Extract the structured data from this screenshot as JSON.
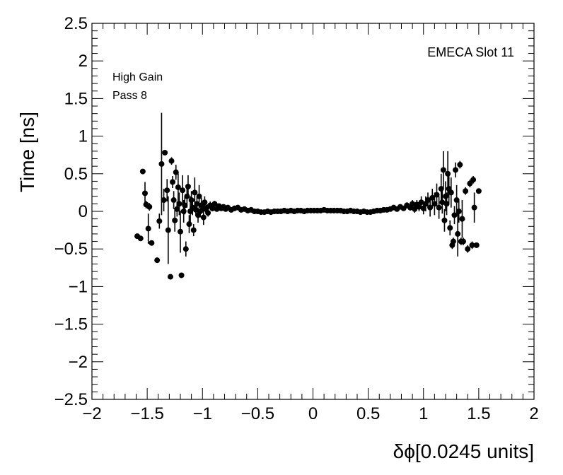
{
  "chart_data": {
    "type": "scatter",
    "title": "",
    "xlabel": "δϕ[0.0245 units]",
    "ylabel": "Time [ns]",
    "xlim": [
      -2,
      2
    ],
    "ylim": [
      -2.5,
      2.5
    ],
    "x_ticks": [
      -2,
      -1.5,
      -1,
      -0.5,
      0,
      0.5,
      1,
      1.5,
      2
    ],
    "x_tick_labels": [
      "−2",
      "−1.5",
      "−1",
      "−0.5",
      "0",
      "0.5",
      "1",
      "1.5",
      "2"
    ],
    "y_ticks": [
      2.5,
      2,
      1.5,
      1,
      0.5,
      0,
      -0.5,
      -1,
      -1.5,
      -2,
      -2.5
    ],
    "y_tick_labels": [
      "2.5",
      "2",
      "1.5",
      "1",
      "0.5",
      "0",
      "−0.5",
      "−1",
      "−1.5",
      "−2",
      "−2.5"
    ],
    "grid": false,
    "marker": "filled-circle",
    "marker_color": "#000000",
    "annotations": {
      "top_right": "EMECA Slot 11",
      "top_left": [
        "High Gain",
        "Pass 8"
      ]
    },
    "points": [
      {
        "x": -1.59,
        "y": -0.33,
        "err": 0.02
      },
      {
        "x": -1.56,
        "y": -0.36,
        "err": 0.02
      },
      {
        "x": -1.54,
        "y": 0.53,
        "err": 0.03
      },
      {
        "x": -1.52,
        "y": 0.24,
        "err": 0.15
      },
      {
        "x": -1.51,
        "y": 0.09,
        "err": 0.05
      },
      {
        "x": -1.49,
        "y": -0.23,
        "err": 0.2
      },
      {
        "x": -1.48,
        "y": 0.06,
        "err": 0.05
      },
      {
        "x": -1.46,
        "y": -0.42,
        "err": 0.03
      },
      {
        "x": -1.41,
        "y": -0.65,
        "err": 0.03
      },
      {
        "x": -1.39,
        "y": -0.13,
        "err": 0.1
      },
      {
        "x": -1.37,
        "y": 0.63,
        "err": 0.68
      },
      {
        "x": -1.35,
        "y": 0.15,
        "err": 0.15
      },
      {
        "x": -1.34,
        "y": 0.78,
        "err": 0.03
      },
      {
        "x": -1.32,
        "y": 0.28,
        "err": 0.15
      },
      {
        "x": -1.31,
        "y": -0.25,
        "err": 0.45
      },
      {
        "x": -1.29,
        "y": -0.87,
        "err": 0.03
      },
      {
        "x": -1.28,
        "y": 0.67,
        "err": 0.05
      },
      {
        "x": -1.27,
        "y": 0.39,
        "err": 0.08
      },
      {
        "x": -1.26,
        "y": 0.15,
        "err": 0.12
      },
      {
        "x": -1.25,
        "y": -0.12,
        "err": 0.15
      },
      {
        "x": -1.24,
        "y": 0.52,
        "err": 0.1
      },
      {
        "x": -1.23,
        "y": 0.03,
        "err": 0.1
      },
      {
        "x": -1.22,
        "y": 0.32,
        "err": 0.2
      },
      {
        "x": -1.21,
        "y": 0.1,
        "err": 0.15
      },
      {
        "x": -1.2,
        "y": -0.27,
        "err": 0.28
      },
      {
        "x": -1.19,
        "y": -0.85,
        "err": 0.03
      },
      {
        "x": -1.18,
        "y": 0.28,
        "err": 0.2
      },
      {
        "x": -1.17,
        "y": 0.0,
        "err": 0.15
      },
      {
        "x": -1.16,
        "y": 0.08,
        "err": 0.12
      },
      {
        "x": -1.15,
        "y": -0.5,
        "err": 0.1
      },
      {
        "x": -1.14,
        "y": 0.2,
        "err": 0.15
      },
      {
        "x": -1.13,
        "y": 0.33,
        "err": 0.15
      },
      {
        "x": -1.12,
        "y": -0.17,
        "err": 0.12
      },
      {
        "x": -1.11,
        "y": 0.0,
        "err": 0.2
      },
      {
        "x": -1.1,
        "y": 0.15,
        "err": 0.12
      },
      {
        "x": -1.09,
        "y": 0.05,
        "err": 0.1
      },
      {
        "x": -1.08,
        "y": -0.25,
        "err": 0.08
      },
      {
        "x": -1.07,
        "y": 0.25,
        "err": 0.2
      },
      {
        "x": -1.06,
        "y": 0.02,
        "err": 0.08
      },
      {
        "x": -1.05,
        "y": 0.1,
        "err": 0.1
      },
      {
        "x": -1.04,
        "y": -0.05,
        "err": 0.1
      },
      {
        "x": -1.03,
        "y": 0.2,
        "err": 0.15
      },
      {
        "x": -1.02,
        "y": 0.0,
        "err": 0.08
      },
      {
        "x": -1.01,
        "y": 0.08,
        "err": 0.1
      },
      {
        "x": -1.0,
        "y": 0.05,
        "err": 0.06
      },
      {
        "x": -0.99,
        "y": -0.08,
        "err": 0.1
      },
      {
        "x": -0.98,
        "y": 0.12,
        "err": 0.08
      },
      {
        "x": -0.97,
        "y": 0.03,
        "err": 0.05
      },
      {
        "x": -0.96,
        "y": 0.05,
        "err": 0.04
      },
      {
        "x": -0.95,
        "y": -0.02,
        "err": 0.05
      },
      {
        "x": -0.93,
        "y": 0.08,
        "err": 0.05
      },
      {
        "x": -0.91,
        "y": 0.04,
        "err": 0.04
      },
      {
        "x": -0.89,
        "y": 0.1,
        "err": 0.04
      },
      {
        "x": -0.87,
        "y": 0.03,
        "err": 0.03
      },
      {
        "x": -0.85,
        "y": 0.07,
        "err": 0.03
      },
      {
        "x": -0.83,
        "y": 0.04,
        "err": 0.03
      },
      {
        "x": -0.81,
        "y": 0.06,
        "err": 0.03
      },
      {
        "x": -0.79,
        "y": 0.03,
        "err": 0.02
      },
      {
        "x": -0.77,
        "y": 0.05,
        "err": 0.02
      },
      {
        "x": -0.74,
        "y": 0.02,
        "err": 0.02
      },
      {
        "x": -0.71,
        "y": 0.04,
        "err": 0.02
      },
      {
        "x": -0.68,
        "y": 0.05,
        "err": 0.02
      },
      {
        "x": -0.65,
        "y": 0.02,
        "err": 0.02
      },
      {
        "x": -0.62,
        "y": 0.03,
        "err": 0.01
      },
      {
        "x": -0.59,
        "y": 0.01,
        "err": 0.01
      },
      {
        "x": -0.56,
        "y": 0.02,
        "err": 0.01
      },
      {
        "x": -0.53,
        "y": 0.0,
        "err": 0.01
      },
      {
        "x": -0.5,
        "y": 0.0,
        "err": 0.01
      },
      {
        "x": -0.47,
        "y": -0.01,
        "err": 0.01
      },
      {
        "x": -0.44,
        "y": -0.01,
        "err": 0.01
      },
      {
        "x": -0.41,
        "y": 0.0,
        "err": 0.01
      },
      {
        "x": -0.38,
        "y": -0.01,
        "err": 0.01
      },
      {
        "x": -0.35,
        "y": 0.0,
        "err": 0.01
      },
      {
        "x": -0.32,
        "y": 0.0,
        "err": 0.01
      },
      {
        "x": -0.29,
        "y": 0.0,
        "err": 0.01
      },
      {
        "x": -0.26,
        "y": 0.01,
        "err": 0.01
      },
      {
        "x": -0.23,
        "y": 0.0,
        "err": 0.01
      },
      {
        "x": -0.2,
        "y": 0.01,
        "err": 0.01
      },
      {
        "x": -0.17,
        "y": 0.0,
        "err": 0.01
      },
      {
        "x": -0.14,
        "y": 0.01,
        "err": 0.01
      },
      {
        "x": -0.11,
        "y": 0.01,
        "err": 0.01
      },
      {
        "x": -0.08,
        "y": 0.0,
        "err": 0.01
      },
      {
        "x": -0.05,
        "y": 0.01,
        "err": 0.01
      },
      {
        "x": -0.02,
        "y": 0.01,
        "err": 0.01
      },
      {
        "x": 0.01,
        "y": 0.01,
        "err": 0.01
      },
      {
        "x": 0.04,
        "y": 0.01,
        "err": 0.01
      },
      {
        "x": 0.07,
        "y": 0.01,
        "err": 0.01
      },
      {
        "x": 0.1,
        "y": 0.02,
        "err": 0.01
      },
      {
        "x": 0.13,
        "y": 0.01,
        "err": 0.01
      },
      {
        "x": 0.16,
        "y": 0.01,
        "err": 0.01
      },
      {
        "x": 0.19,
        "y": 0.01,
        "err": 0.01
      },
      {
        "x": 0.22,
        "y": 0.01,
        "err": 0.01
      },
      {
        "x": 0.25,
        "y": 0.01,
        "err": 0.01
      },
      {
        "x": 0.28,
        "y": 0.0,
        "err": 0.01
      },
      {
        "x": 0.31,
        "y": 0.0,
        "err": 0.01
      },
      {
        "x": 0.34,
        "y": 0.01,
        "err": 0.01
      },
      {
        "x": 0.37,
        "y": 0.0,
        "err": 0.01
      },
      {
        "x": 0.4,
        "y": 0.0,
        "err": 0.01
      },
      {
        "x": 0.43,
        "y": -0.01,
        "err": 0.01
      },
      {
        "x": 0.46,
        "y": 0.0,
        "err": 0.01
      },
      {
        "x": 0.49,
        "y": -0.01,
        "err": 0.01
      },
      {
        "x": 0.52,
        "y": -0.01,
        "err": 0.01
      },
      {
        "x": 0.55,
        "y": 0.0,
        "err": 0.01
      },
      {
        "x": 0.58,
        "y": 0.01,
        "err": 0.01
      },
      {
        "x": 0.61,
        "y": 0.01,
        "err": 0.01
      },
      {
        "x": 0.64,
        "y": 0.02,
        "err": 0.01
      },
      {
        "x": 0.67,
        "y": 0.02,
        "err": 0.02
      },
      {
        "x": 0.7,
        "y": 0.03,
        "err": 0.02
      },
      {
        "x": 0.73,
        "y": 0.05,
        "err": 0.02
      },
      {
        "x": 0.76,
        "y": 0.03,
        "err": 0.02
      },
      {
        "x": 0.79,
        "y": 0.06,
        "err": 0.03
      },
      {
        "x": 0.82,
        "y": 0.04,
        "err": 0.03
      },
      {
        "x": 0.85,
        "y": 0.08,
        "err": 0.04
      },
      {
        "x": 0.88,
        "y": 0.05,
        "err": 0.04
      },
      {
        "x": 0.9,
        "y": 0.1,
        "err": 0.05
      },
      {
        "x": 0.92,
        "y": 0.03,
        "err": 0.05
      },
      {
        "x": 0.94,
        "y": 0.09,
        "err": 0.06
      },
      {
        "x": 0.96,
        "y": 0.06,
        "err": 0.06
      },
      {
        "x": 0.98,
        "y": 0.12,
        "err": 0.08
      },
      {
        "x": 1.0,
        "y": 0.04,
        "err": 0.08
      },
      {
        "x": 1.02,
        "y": 0.1,
        "err": 0.1
      },
      {
        "x": 1.04,
        "y": 0.15,
        "err": 0.1
      },
      {
        "x": 1.06,
        "y": 0.05,
        "err": 0.12
      },
      {
        "x": 1.08,
        "y": 0.18,
        "err": 0.12
      },
      {
        "x": 1.1,
        "y": 0.1,
        "err": 0.15
      },
      {
        "x": 1.12,
        "y": 0.22,
        "err": 0.15
      },
      {
        "x": 1.14,
        "y": 0.05,
        "err": 0.15
      },
      {
        "x": 1.16,
        "y": 0.3,
        "err": 0.2
      },
      {
        "x": 1.17,
        "y": 0.12,
        "err": 0.15
      },
      {
        "x": 1.18,
        "y": 0.55,
        "err": 0.25
      },
      {
        "x": 1.19,
        "y": -0.12,
        "err": 0.15
      },
      {
        "x": 1.2,
        "y": 0.2,
        "err": 0.2
      },
      {
        "x": 1.21,
        "y": 0.1,
        "err": 0.15
      },
      {
        "x": 1.22,
        "y": 0.5,
        "err": 0.3
      },
      {
        "x": 1.23,
        "y": 0.3,
        "err": 0.2
      },
      {
        "x": 1.24,
        "y": -0.22,
        "err": 0.1
      },
      {
        "x": 1.25,
        "y": 0.25,
        "err": 0.2
      },
      {
        "x": 1.26,
        "y": -0.45,
        "err": 0.05
      },
      {
        "x": 1.27,
        "y": -0.4,
        "err": 0.05
      },
      {
        "x": 1.28,
        "y": -0.05,
        "err": 0.12
      },
      {
        "x": 1.29,
        "y": 0.55,
        "err": 0.1
      },
      {
        "x": 1.3,
        "y": 0.15,
        "err": 0.2
      },
      {
        "x": 1.31,
        "y": -0.3,
        "err": 0.3
      },
      {
        "x": 1.32,
        "y": 0.0,
        "err": 0.15
      },
      {
        "x": 1.33,
        "y": 0.62,
        "err": 0.05
      },
      {
        "x": 1.34,
        "y": -0.4,
        "err": 0.05
      },
      {
        "x": 1.35,
        "y": -0.1,
        "err": 0.25
      },
      {
        "x": 1.36,
        "y": -0.4,
        "err": 0.05
      },
      {
        "x": 1.38,
        "y": 0.27,
        "err": 0.05
      },
      {
        "x": 1.4,
        "y": -0.5,
        "err": 0.05
      },
      {
        "x": 1.42,
        "y": 0.37,
        "err": 0.05
      },
      {
        "x": 1.44,
        "y": -0.45,
        "err": 0.05
      },
      {
        "x": 1.45,
        "y": 0.42,
        "err": 0.05
      },
      {
        "x": 1.46,
        "y": 0.05,
        "err": 0.2
      },
      {
        "x": 1.5,
        "y": 0.27,
        "err": 0.03
      },
      {
        "x": 1.48,
        "y": -0.45,
        "err": 0.03
      }
    ]
  }
}
